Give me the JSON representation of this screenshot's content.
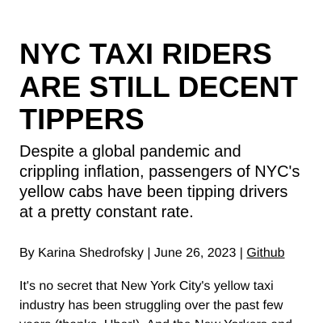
{
  "article": {
    "headline": "NYC TAXI RIDERS ARE STILL DECENT TIPPERS",
    "subheadline": "Despite a global pandemic and crippling inflation, passengers of NYC's yellow cabs have been tipping drivers at a pretty constant rate.",
    "byline": {
      "prefix": "By",
      "author": "Karina Shedrofsky",
      "separator": "|",
      "date": "June 26, 2023",
      "link_label": "Github"
    },
    "body_paragraph_1": "It's no secret that New York City's yellow taxi industry has been struggling over the past few years (thanks, Uber!). And the New Yorkers and"
  },
  "colors": {
    "text": "#000000",
    "background": "#ffffff"
  }
}
